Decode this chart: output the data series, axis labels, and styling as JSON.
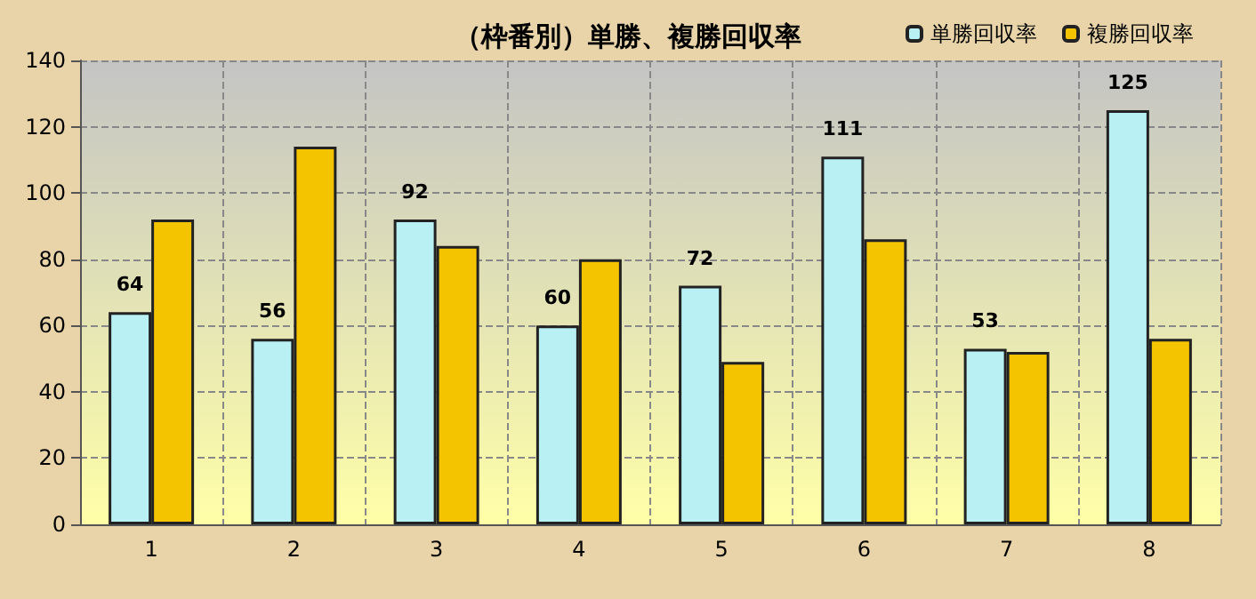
{
  "chart_data": {
    "type": "bar",
    "title": "（枠番別）単勝、複勝回収率",
    "categories": [
      "1",
      "2",
      "3",
      "4",
      "5",
      "6",
      "7",
      "8"
    ],
    "series": [
      {
        "name": "単勝回収率",
        "color": "#b8f0f4",
        "values": [
          64,
          56,
          92,
          60,
          72,
          111,
          53,
          125
        ],
        "value_labels": [
          "64",
          "56",
          "92",
          "60",
          "72",
          "111",
          "53",
          "125"
        ]
      },
      {
        "name": "複勝回収率",
        "color": "#f5c400",
        "values": [
          92,
          114,
          84,
          80,
          49,
          86,
          52,
          56
        ]
      }
    ],
    "ylim": [
      0,
      140
    ],
    "yticks": [
      0,
      20,
      40,
      60,
      80,
      100,
      120,
      140
    ],
    "grid": true,
    "legend": "top right"
  }
}
